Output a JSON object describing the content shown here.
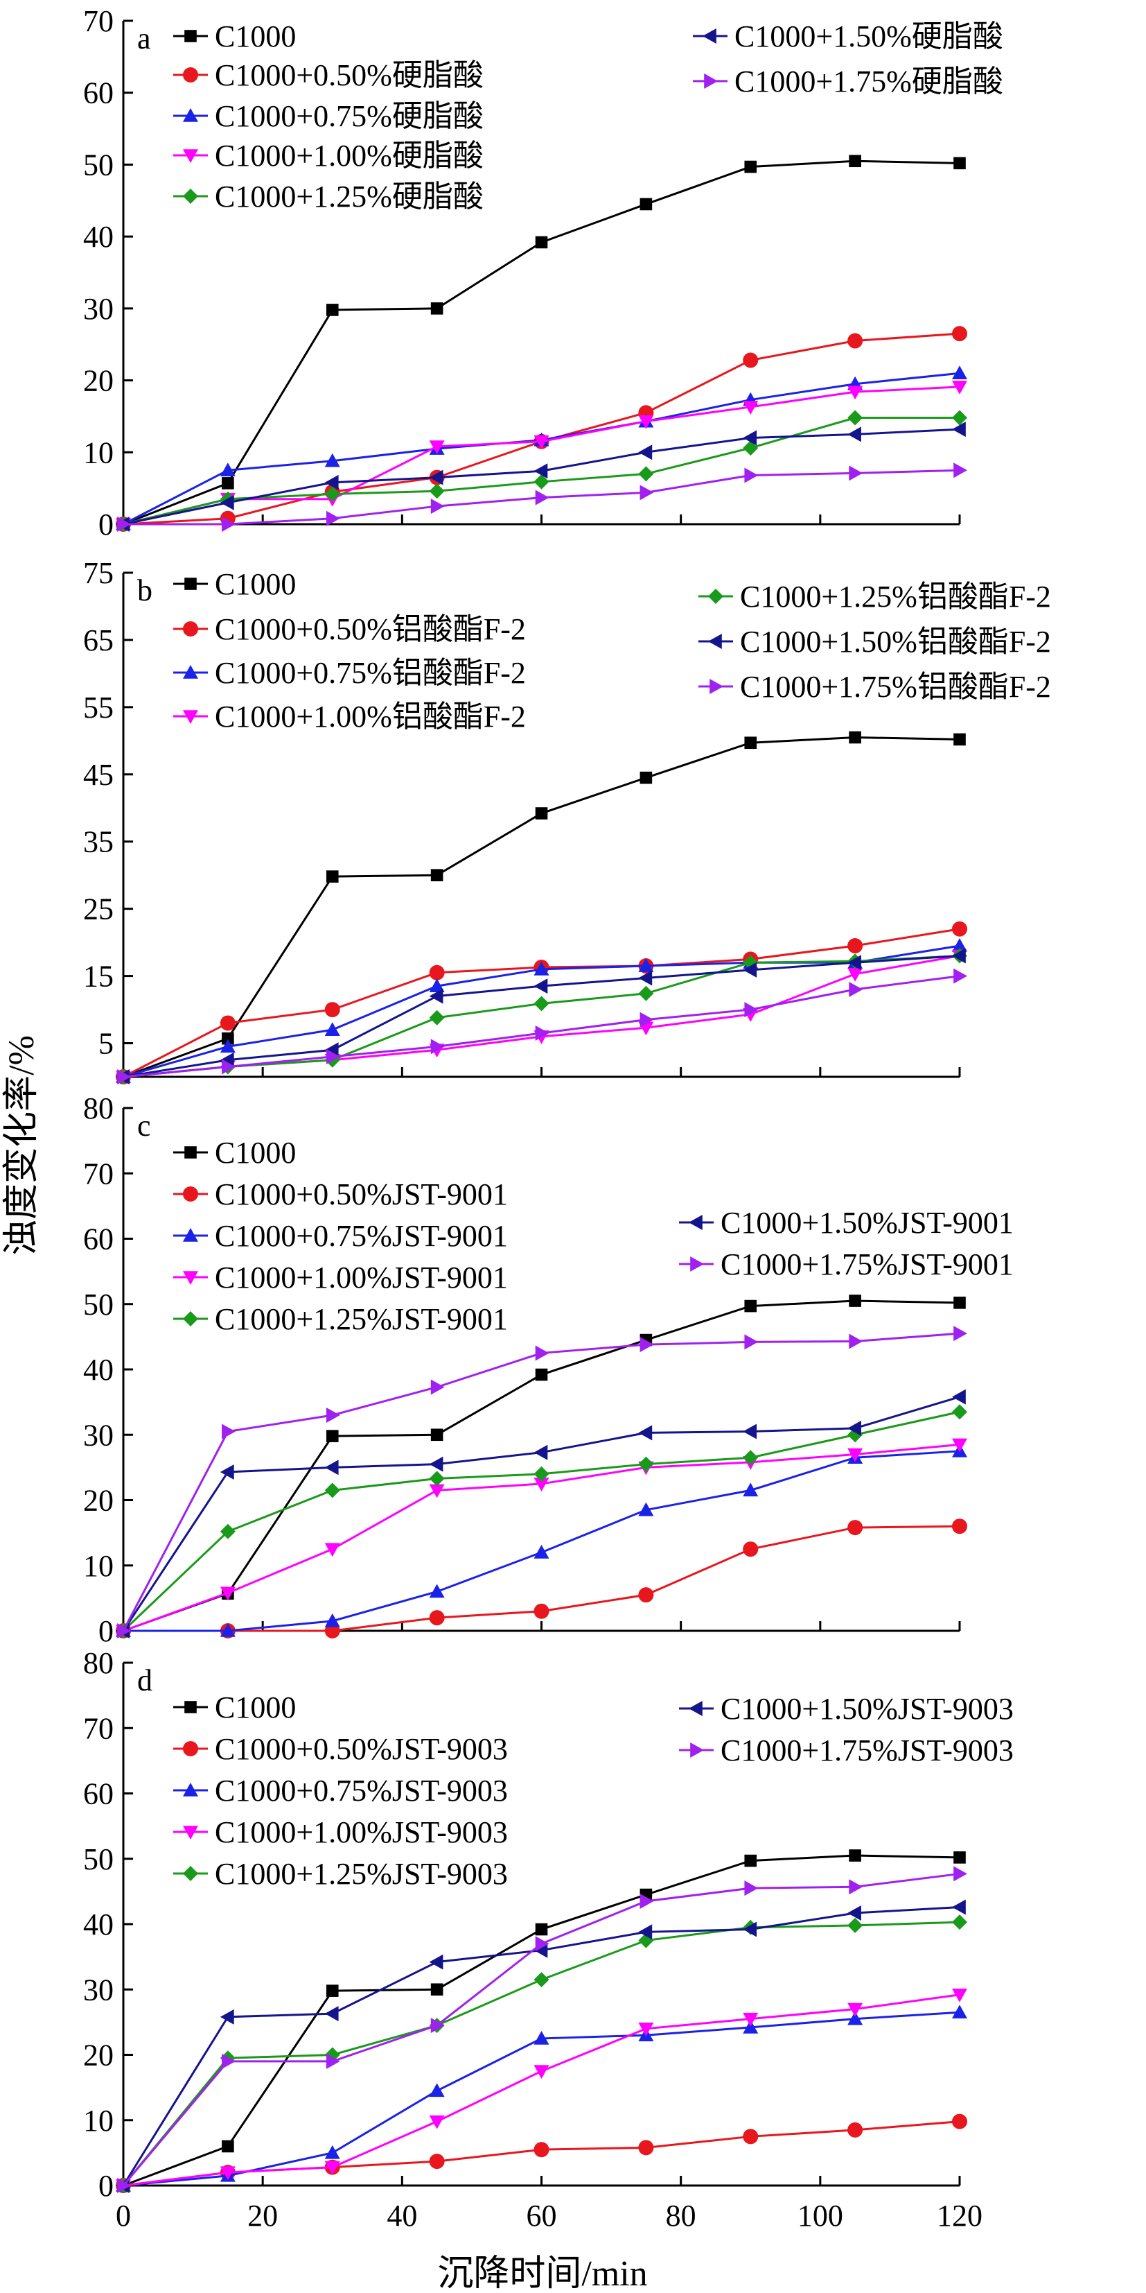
{
  "figure": {
    "xlabel": "沉降时间/min",
    "ylabel": "浊度变化率/%"
  },
  "chart_data": [
    {
      "panel": "a",
      "type": "line",
      "x": [
        0,
        15,
        30,
        45,
        60,
        75,
        90,
        105,
        120
      ],
      "xlim": [
        0,
        120
      ],
      "xticks": [
        0,
        20,
        40,
        60,
        80,
        100,
        120
      ],
      "ylim": [
        0,
        70
      ],
      "yticks": [
        0,
        10,
        20,
        30,
        40,
        50,
        60,
        70
      ],
      "series": [
        {
          "name": "C1000",
          "color": "#000000",
          "marker": "square",
          "values": [
            0,
            5.7,
            29.8,
            30,
            39.2,
            44.5,
            49.7,
            50.5,
            50.2
          ]
        },
        {
          "name": "C1000+0.50%硬脂酸",
          "color": "#e8161d",
          "marker": "circle",
          "values": [
            0,
            0.8,
            4.5,
            6.5,
            11.5,
            15.5,
            22.8,
            25.5,
            26.5
          ]
        },
        {
          "name": "C1000+0.75%硬脂酸",
          "color": "#1a22e8",
          "marker": "triangle-up",
          "values": [
            0,
            7.5,
            8.8,
            10.5,
            11.7,
            14.3,
            17.3,
            19.5,
            21
          ]
        },
        {
          "name": "C1000+1.00%硬脂酸",
          "color": "#ff00ff",
          "marker": "triangle-down",
          "values": [
            0,
            3.5,
            3.5,
            10.8,
            11.5,
            14.3,
            16.3,
            18.4,
            19.1
          ]
        },
        {
          "name": "C1000+1.25%硬脂酸",
          "color": "#1a9a1a",
          "marker": "diamond",
          "values": [
            0,
            3.5,
            4.2,
            4.6,
            5.9,
            7,
            10.6,
            14.8,
            14.8
          ]
        },
        {
          "name": "C1000+1.50%硬脂酸",
          "color": "#14148c",
          "marker": "triangle-left",
          "values": [
            0,
            3,
            5.8,
            6.5,
            7.4,
            10,
            12,
            12.5,
            13.2
          ]
        },
        {
          "name": "C1000+1.75%硬脂酸",
          "color": "#a020f0",
          "marker": "triangle-right",
          "values": [
            0,
            0,
            0.8,
            2.5,
            3.7,
            4.4,
            6.8,
            7.1,
            7.5
          ]
        }
      ]
    },
    {
      "panel": "b",
      "type": "line",
      "x": [
        0,
        15,
        30,
        45,
        60,
        75,
        90,
        105,
        120
      ],
      "xlim": [
        0,
        120
      ],
      "xticks": [
        0,
        20,
        40,
        60,
        80,
        100,
        120
      ],
      "ylim": [
        0,
        75
      ],
      "yticks": [
        5,
        15,
        25,
        35,
        45,
        55,
        65,
        75
      ],
      "series": [
        {
          "name": "C1000",
          "color": "#000000",
          "marker": "square",
          "values": [
            0,
            5.7,
            29.8,
            30,
            39.2,
            44.5,
            49.7,
            50.5,
            50.2
          ]
        },
        {
          "name": "C1000+0.50%铝酸酯F-2",
          "color": "#e8161d",
          "marker": "circle",
          "values": [
            0,
            8,
            10,
            15.5,
            16.3,
            16.5,
            17.5,
            19.5,
            22
          ]
        },
        {
          "name": "C1000+0.75%铝酸酯F-2",
          "color": "#1a22e8",
          "marker": "triangle-up",
          "values": [
            0,
            4.5,
            7,
            13.5,
            16,
            16.5,
            17,
            17,
            19.5
          ]
        },
        {
          "name": "C1000+1.00%铝酸酯F-2",
          "color": "#ff00ff",
          "marker": "triangle-down",
          "values": [
            0,
            1.5,
            2.5,
            4,
            6,
            7.3,
            9.3,
            15.3,
            18
          ]
        },
        {
          "name": "C1000+1.25%铝酸酯F-2",
          "color": "#1a9a1a",
          "marker": "diamond",
          "values": [
            0,
            1.5,
            2.5,
            8.8,
            10.9,
            12.4,
            17,
            17.2,
            18
          ]
        },
        {
          "name": "C1000+1.50%铝酸酯F-2",
          "color": "#14148c",
          "marker": "triangle-left",
          "values": [
            0,
            2.5,
            4,
            12,
            13.5,
            14.7,
            15.9,
            17,
            18
          ]
        },
        {
          "name": "C1000+1.75%铝酸酯F-2",
          "color": "#a020f0",
          "marker": "triangle-right",
          "values": [
            0,
            1.5,
            3,
            4.5,
            6.5,
            8.5,
            10,
            13,
            15
          ]
        }
      ]
    },
    {
      "panel": "c",
      "type": "line",
      "x": [
        0,
        15,
        30,
        45,
        60,
        75,
        90,
        105,
        120
      ],
      "xlim": [
        0,
        120
      ],
      "xticks": [
        0,
        20,
        40,
        60,
        80,
        100,
        120
      ],
      "ylim": [
        0,
        80
      ],
      "yticks": [
        0,
        10,
        20,
        30,
        40,
        50,
        60,
        70,
        80
      ],
      "series": [
        {
          "name": "C1000",
          "color": "#000000",
          "marker": "square",
          "values": [
            0,
            5.7,
            29.8,
            30,
            39.2,
            44.5,
            49.7,
            50.5,
            50.2
          ]
        },
        {
          "name": "C1000+0.50%JST-9001",
          "color": "#e8161d",
          "marker": "circle",
          "values": [
            0,
            0,
            0,
            2,
            3,
            5.5,
            12.5,
            15.8,
            16
          ]
        },
        {
          "name": "C1000+0.75%JST-9001",
          "color": "#1a22e8",
          "marker": "triangle-up",
          "values": [
            0,
            0,
            1.5,
            6,
            12,
            18.5,
            21.5,
            26.5,
            27.5
          ]
        },
        {
          "name": "C1000+1.00%JST-9001",
          "color": "#ff00ff",
          "marker": "triangle-down",
          "values": [
            0,
            5.8,
            12.5,
            21.5,
            22.5,
            25,
            25.8,
            27,
            28.5
          ]
        },
        {
          "name": "C1000+1.25%JST-9001",
          "color": "#1a9a1a",
          "marker": "diamond",
          "values": [
            0,
            15.2,
            21.5,
            23.3,
            24,
            25.5,
            26.5,
            30,
            33.5
          ]
        },
        {
          "name": "C1000+1.50%JST-9001",
          "color": "#14148c",
          "marker": "triangle-left",
          "values": [
            0,
            24.3,
            25,
            25.5,
            27.3,
            30.3,
            30.5,
            31,
            35.8
          ]
        },
        {
          "name": "C1000+1.75%JST-9001",
          "color": "#a020f0",
          "marker": "triangle-right",
          "values": [
            0,
            30.5,
            33,
            37.3,
            42.5,
            43.8,
            44.2,
            44.3,
            45.5
          ]
        }
      ]
    },
    {
      "panel": "d",
      "type": "line",
      "x": [
        0,
        15,
        30,
        45,
        60,
        75,
        90,
        105,
        120
      ],
      "xlim": [
        0,
        120
      ],
      "xticks": [
        0,
        20,
        40,
        60,
        80,
        100,
        120
      ],
      "ylim": [
        0,
        80
      ],
      "yticks": [
        0,
        10,
        20,
        30,
        40,
        50,
        60,
        70,
        80
      ],
      "series": [
        {
          "name": "C1000",
          "color": "#000000",
          "marker": "square",
          "values": [
            0,
            6,
            29.8,
            30,
            39.2,
            44.5,
            49.7,
            50.5,
            50.2
          ]
        },
        {
          "name": "C1000+0.50%JST-9003",
          "color": "#e8161d",
          "marker": "circle",
          "values": [
            0,
            2,
            2.8,
            3.7,
            5.5,
            5.8,
            7.5,
            8.5,
            9.8
          ]
        },
        {
          "name": "C1000+0.75%JST-9003",
          "color": "#1a22e8",
          "marker": "triangle-up",
          "values": [
            0,
            1.5,
            5,
            14.5,
            22.5,
            23,
            24.2,
            25.5,
            26.5
          ]
        },
        {
          "name": "C1000+1.00%JST-9003",
          "color": "#ff00ff",
          "marker": "triangle-down",
          "values": [
            0,
            2,
            2.8,
            9.8,
            17.5,
            24,
            25.5,
            27,
            29.2
          ]
        },
        {
          "name": "C1000+1.25%JST-9003",
          "color": "#1a9a1a",
          "marker": "diamond",
          "values": [
            0,
            19.5,
            20,
            24.5,
            31.5,
            37.5,
            39.5,
            39.8,
            40.3
          ]
        },
        {
          "name": "C1000+1.50%JST-9003",
          "color": "#14148c",
          "marker": "triangle-left",
          "values": [
            0,
            25.8,
            26.3,
            34.2,
            36,
            38.8,
            39.2,
            41.7,
            42.6
          ]
        },
        {
          "name": "C1000+1.75%JST-9003",
          "color": "#a020f0",
          "marker": "triangle-right",
          "values": [
            0,
            19,
            19,
            24.5,
            37,
            43.5,
            45.5,
            45.7,
            47.7
          ]
        }
      ]
    }
  ]
}
